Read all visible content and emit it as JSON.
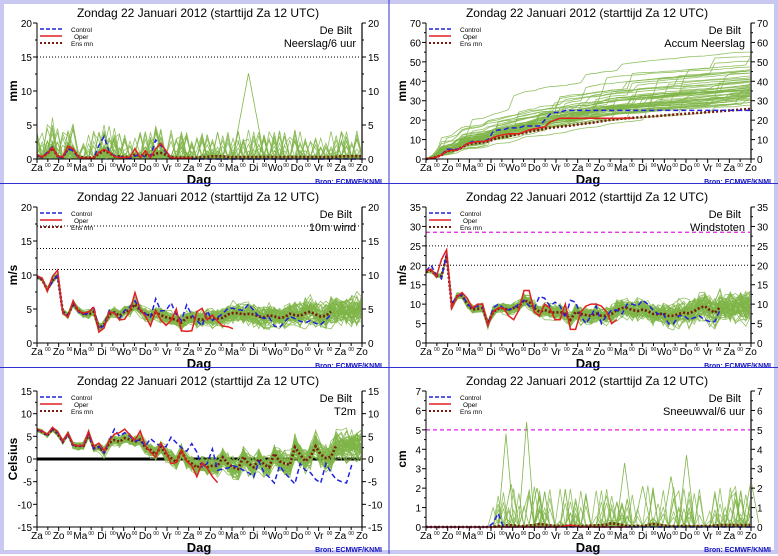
{
  "common": {
    "title": "Zondag    22 Januari   2012  (starttijd  Za 12 UTC)",
    "station": "De Bilt",
    "xlabel": "Dag",
    "source": "Bron: ECMWF/KNMI",
    "day_ticks": [
      "Za",
      "Zo",
      "Ma",
      "Di",
      "Wo",
      "Do",
      "Vr",
      "Za",
      "Zo",
      "Ma",
      "Di",
      "Wo",
      "Do",
      "Vr",
      "Za",
      "Zo"
    ],
    "hour_tick": "00",
    "legend": [
      {
        "label": "Control",
        "color": "#2020e0",
        "style": "dashed"
      },
      {
        "label": "Oper",
        "color": "#e02020",
        "style": "solid"
      },
      {
        "label": "Ens mn",
        "color": "#7a1a10",
        "style": "dotted"
      }
    ],
    "colors": {
      "ensemble": "#7fb548",
      "control": "#2020e0",
      "oper": "#e02020",
      "mean": "#7a1a10",
      "source": "#1010c0",
      "warning": "#e020e0",
      "border": "#3030d0"
    }
  },
  "chart_data": [
    {
      "id": "neerslag",
      "type": "line",
      "subtitle": "Neerslag/6 uur",
      "ylabel": "mm",
      "ylim": [
        0,
        20
      ],
      "yticks": [
        0,
        5,
        10,
        15,
        20
      ],
      "ref_lines": [
        {
          "y": 15,
          "style": "dotted",
          "color": "#000000"
        }
      ],
      "control": [
        0.5,
        0.2,
        1,
        1.8,
        0.3,
        0.2,
        1.5,
        1.2,
        0.2,
        0.1,
        0.1,
        0.1,
        2,
        3.3,
        1,
        0.5,
        0.3,
        0.2,
        0.1,
        0.4,
        0.8,
        0.3,
        0.4,
        2.8,
        2,
        1,
        0,
        0.1,
        0.1,
        0.1,
        0,
        0,
        0,
        0,
        0,
        0,
        0,
        0,
        0,
        0,
        0,
        0,
        0,
        0,
        0,
        0,
        0,
        0,
        0,
        0,
        0,
        0,
        0,
        0,
        0,
        0,
        0,
        0,
        0,
        0,
        0,
        0,
        0,
        0
      ],
      "oper": [
        0.6,
        0.3,
        0.8,
        1.7,
        0.4,
        0.3,
        1.9,
        1.5,
        0.3,
        0.1,
        0.1,
        0.1,
        1,
        1.4,
        1,
        0.4,
        0.2,
        0.2,
        0.3,
        1.5,
        0.2,
        1.2,
        0.2,
        1.5,
        2.3,
        1.2,
        0.1,
        0.1,
        0.1,
        0.1,
        0.1
      ],
      "mean": [
        0.5,
        0.3,
        0.8,
        1.6,
        0.4,
        0.3,
        1.5,
        1.3,
        0.4,
        0.2,
        0.2,
        0.2,
        0.8,
        1.2,
        0.9,
        0.4,
        0.4,
        0.3,
        0.3,
        0.6,
        0.5,
        0.6,
        0.4,
        0.8,
        0.9,
        0.6,
        0.3,
        0.2,
        0.2,
        0.2,
        0.2,
        0.2,
        0.3,
        0.3,
        0.4,
        0.4,
        0.4,
        0.3,
        0.3,
        0.3,
        0.3,
        0.3,
        0.3,
        0.3,
        0.3,
        0.3,
        0.3,
        0.3,
        0.3,
        0.3,
        0.3,
        0.3,
        0.3,
        0.3,
        0.3,
        0.3,
        0.3,
        0.3,
        0.3,
        0.4,
        0.4,
        0.4,
        0.4,
        0.4
      ],
      "ensemble_spread": {
        "members": 50,
        "max_value": 12.6,
        "peak_day_index": 10.2
      }
    },
    {
      "id": "accum",
      "type": "line",
      "subtitle": "Accum Neerslag",
      "ylabel": "mm",
      "ylim": [
        0,
        70
      ],
      "yticks": [
        0,
        10,
        20,
        30,
        40,
        50,
        60,
        70
      ],
      "ref_lines": [],
      "control": [
        0,
        0.5,
        1,
        2,
        5,
        5,
        5,
        6,
        8,
        9,
        9,
        9,
        10,
        14,
        15,
        15,
        16,
        16,
        16,
        17,
        17,
        17,
        17,
        20,
        23,
        24,
        24,
        25,
        25,
        25,
        25,
        25,
        25,
        25,
        25,
        25,
        25,
        25,
        25,
        25,
        25,
        25,
        25,
        25,
        25,
        25,
        25,
        25,
        25,
        25,
        25,
        25,
        25,
        25,
        25,
        25,
        25,
        25,
        25,
        25,
        25,
        25,
        25,
        25
      ],
      "oper": [
        0,
        0.5,
        1,
        2,
        4,
        4.5,
        4.5,
        6,
        8,
        8.5,
        9,
        9,
        9.5,
        11,
        12,
        12.5,
        13,
        13,
        13,
        14,
        15,
        15.5,
        16,
        16.5,
        19,
        20,
        21,
        21,
        21,
        21,
        21,
        21,
        21,
        21,
        21,
        21,
        21,
        21,
        21,
        21,
        21
      ],
      "mean": [
        0,
        0.4,
        1,
        2,
        4,
        4.4,
        4.8,
        6,
        7.5,
        8,
        8.3,
        8.6,
        9,
        10,
        10.8,
        11.3,
        11.8,
        12.3,
        12.8,
        13.4,
        14,
        14.5,
        15,
        15.6,
        16,
        16.3,
        16.6,
        16.9,
        17.2,
        17.6,
        18,
        18.3,
        18.6,
        19,
        19.4,
        19.8,
        20.2,
        20.5,
        20.8,
        21,
        21.2,
        21.4,
        21.6,
        21.8,
        22,
        22.2,
        22.4,
        22.6,
        22.8,
        23,
        23.2,
        23.4,
        23.6,
        23.8,
        24,
        24.2,
        24.4,
        24.6,
        24.8,
        25,
        25.2,
        25.4,
        25.6,
        25.8
      ],
      "ensemble_spread": {
        "members": 50,
        "final_min": 10,
        "final_max": 55
      }
    },
    {
      "id": "wind",
      "type": "line",
      "subtitle": "10m wind",
      "ylabel": "m/s",
      "ylim": [
        0,
        20
      ],
      "yticks": [
        0,
        5,
        10,
        15,
        20
      ],
      "ref_lines": [
        {
          "y": 10.8,
          "style": "dotted",
          "color": "#000000"
        },
        {
          "y": 13.9,
          "style": "dotted",
          "color": "#000000"
        },
        {
          "y": 17.2,
          "style": "dotted",
          "color": "#000000"
        }
      ],
      "control": [
        9.8,
        9.4,
        7.7,
        9,
        10,
        4.5,
        4,
        6,
        4.6,
        4.2,
        4.4,
        5.4,
        2,
        2.6,
        4.8,
        4.4,
        3.6,
        4.8,
        5.3,
        6.2,
        4.8,
        4.3,
        3.8,
        6.5,
        4.7,
        4.8,
        5.9,
        4.2,
        3.3,
        5.6,
        4.1,
        3.3,
        2.5,
        4.7,
        3.3,
        3.8,
        4.3,
        5.1,
        5.1,
        4.9,
        4.8,
        5.7,
        4.8,
        3.9,
        3.6,
        3.8,
        2.5,
        2.3,
        3.1,
        3.9,
        3.6,
        3.2,
        3,
        3.3,
        2.9,
        2.7,
        3.4,
        4.2
      ],
      "oper": [
        9.9,
        9.5,
        7.6,
        9.8,
        10.7,
        4.4,
        3.8,
        6.2,
        4.7,
        4.4,
        4.6,
        5.2,
        1.6,
        2.2,
        4.6,
        4.4,
        3.4,
        3.5,
        4.7,
        7.4,
        4.9,
        4,
        2.5,
        4.8,
        3.4,
        2.6,
        3.3,
        5,
        1.8,
        1.7,
        1.8,
        4.6,
        5.1,
        3.4,
        4.1,
        3.2,
        2.5,
        2.4,
        2.1
      ],
      "mean": [
        9.7,
        9.3,
        7.8,
        9.2,
        9.9,
        4.6,
        4,
        5.8,
        4.8,
        4.3,
        4.2,
        4.6,
        2.2,
        2.7,
        4.2,
        4.5,
        4,
        4.6,
        4.8,
        5.7,
        4.8,
        4.3,
        4,
        4.5,
        4.1,
        3.8,
        3.6,
        3.4,
        3,
        3.7,
        3.8,
        3.5,
        3.4,
        3.8,
        3.6,
        3.6,
        3.7,
        4.2,
        4.4,
        4.4,
        4.2,
        4.3,
        4.2,
        3.9,
        3.8,
        4.1,
        3.9,
        3.7,
        3.8,
        4.3,
        4.1,
        4,
        4.4,
        4.6,
        4.2,
        3.9,
        4,
        4.6
      ],
      "ensemble_spread": {
        "members": 50,
        "max_value": 12.5
      }
    },
    {
      "id": "windstoten",
      "type": "line",
      "subtitle": "Windstoten",
      "ylabel": "m/s",
      "ylim": [
        0,
        35
      ],
      "yticks": [
        0,
        5,
        10,
        15,
        20,
        25,
        30,
        35
      ],
      "ref_lines": [
        {
          "y": 20,
          "style": "dotted",
          "color": "#000000"
        },
        {
          "y": 25,
          "style": "dotted",
          "color": "#000000"
        },
        {
          "y": 28.5,
          "style": "dashed",
          "color": "#e020e0"
        }
      ],
      "control": [
        18.5,
        20,
        17.5,
        16.5,
        23,
        10,
        12,
        12.5,
        10,
        9,
        9.5,
        9.5,
        4.5,
        9,
        10,
        9,
        8.5,
        9,
        10,
        11,
        9.5,
        9,
        12,
        11.5,
        9.5,
        10.5,
        9.5,
        6.5,
        11,
        10.5,
        7,
        5,
        7,
        9.5,
        5,
        7,
        8.5,
        8.5,
        7.5,
        10,
        10,
        9.5,
        11,
        10,
        8.5,
        7.5,
        7.5,
        5,
        5,
        7,
        7,
        6,
        6.5,
        7,
        6,
        5.5,
        5.5,
        8.5
      ],
      "oper": [
        18.5,
        19,
        17,
        21.5,
        24,
        9,
        12,
        13,
        11.5,
        9,
        10,
        10,
        4.5,
        8,
        9,
        9,
        7,
        6,
        8.5,
        13.5,
        13.5,
        8,
        7,
        10,
        9,
        6,
        6,
        10,
        3.5,
        3.5,
        8,
        9.5,
        10,
        10,
        9.5,
        8,
        5,
        6
      ],
      "mean": [
        18.3,
        18.6,
        17.4,
        17.2,
        22.5,
        9.5,
        12,
        12.2,
        10,
        8.6,
        8.8,
        9,
        5,
        8,
        8.8,
        9,
        8.5,
        9,
        9.4,
        11,
        10.5,
        9,
        8,
        8.5,
        8,
        7.8,
        8,
        7.5,
        6,
        8,
        7.5,
        7.2,
        7,
        7.6,
        7,
        7,
        7.5,
        8.5,
        9,
        9,
        8.5,
        8.2,
        8.6,
        8.2,
        7.5,
        7.4,
        7.6,
        7,
        7,
        7.5,
        7.8,
        7.6,
        8.2,
        9,
        9.5,
        8.5,
        7.8,
        9.2
      ],
      "ensemble_spread": {
        "members": 50,
        "max_value": 25.5
      }
    },
    {
      "id": "t2m",
      "type": "line",
      "subtitle": "T2m",
      "ylabel": "Celsius",
      "ylim": [
        -15,
        15
      ],
      "yticks": [
        -15,
        -10,
        -5,
        0,
        5,
        10,
        15
      ],
      "ref_lines": [
        {
          "y": 0,
          "style": "solid-thick",
          "color": "#000000"
        }
      ],
      "control": [
        6.5,
        6,
        5.3,
        6.7,
        5.8,
        3.8,
        5.6,
        3,
        2.9,
        2.8,
        5.6,
        2.2,
        2.8,
        1.3,
        4,
        6.6,
        5,
        5.8,
        5,
        4,
        4.2,
        2.8,
        4.5,
        3.5,
        2.8,
        2.7,
        4.8,
        3.6,
        2.5,
        1.7,
        3.4,
        1.5,
        -1.8,
        -1,
        2.2,
        -2.5,
        -2.2,
        -2,
        -1.5,
        -1.8,
        -2.5,
        -3,
        -4,
        -0.5,
        -3,
        -4,
        -5.3,
        -1.5,
        -3,
        -4.3,
        -5.5,
        -1,
        -2.5,
        -3,
        -4.5,
        -5.3,
        -1,
        -3,
        -4.5,
        -5,
        -5.3,
        -1.3
      ],
      "oper": [
        6.6,
        6.2,
        5.4,
        7,
        6,
        4,
        5.8,
        3.2,
        2.9,
        3,
        6.1,
        2.8,
        3.5,
        1.8,
        4,
        5.5,
        5.8,
        6.6,
        5.3,
        4.2,
        6.2,
        3,
        1.5,
        0.4,
        3.5,
        1.6,
        -1,
        -0.8,
        2,
        -0.5,
        -1.5,
        -3.9,
        -0.8,
        -2,
        -3.9,
        -5.2
      ],
      "mean": [
        6.4,
        6,
        5.2,
        6.6,
        5.6,
        3.8,
        5.5,
        3,
        2.9,
        2.9,
        5.5,
        2.4,
        2.6,
        1.5,
        3.5,
        4.2,
        3.8,
        4.6,
        4.3,
        3.8,
        4.3,
        2.5,
        2,
        1,
        2.7,
        1,
        0.2,
        -0.7,
        1.8,
        -0.4,
        -1,
        -1.9,
        -1,
        -1.8,
        -1.5,
        -1.5,
        0.4,
        -1,
        -1.8,
        -2.2,
        0.5,
        -1,
        -1.8,
        0,
        -1.2,
        -1.8,
        1.2,
        -0.5,
        -1,
        -1.3,
        2.6,
        1,
        -0.5,
        0.5,
        2.8,
        1,
        0.2,
        0.5,
        3
      ],
      "ensemble_spread": {
        "members": 50,
        "min_value": -11.5,
        "max_value": 10
      }
    },
    {
      "id": "sneeuw",
      "type": "line",
      "subtitle": "Sneeuwval/6 uur",
      "ylabel": "cm",
      "ylim": [
        0,
        7
      ],
      "yticks": [
        0,
        1,
        2,
        3,
        4,
        5,
        6,
        7
      ],
      "ref_lines": [
        {
          "y": 5,
          "style": "dashed",
          "color": "#e020e0"
        }
      ],
      "control": [
        0,
        0,
        0,
        0,
        0,
        0,
        0,
        0,
        0,
        0,
        0,
        0,
        0,
        0.2,
        0.7,
        0,
        0,
        0,
        0,
        0,
        0,
        0,
        0,
        0,
        0,
        0,
        0,
        0,
        0,
        0,
        0,
        0,
        0,
        0,
        0,
        0,
        0,
        0,
        0,
        0,
        0,
        0,
        0,
        0,
        0,
        0,
        0,
        0,
        0,
        0,
        0,
        0,
        0,
        0,
        0,
        0,
        0,
        0,
        0,
        0,
        0,
        0,
        0,
        0
      ],
      "oper": [
        0,
        0,
        0,
        0,
        0,
        0,
        0,
        0,
        0,
        0,
        0,
        0,
        0,
        0,
        0,
        0,
        0,
        0,
        0,
        0,
        0,
        0,
        0,
        0,
        0,
        0,
        0,
        0.05,
        0.1,
        0.05,
        0,
        0,
        0,
        0,
        0,
        0,
        0,
        0,
        0,
        0
      ],
      "mean": [
        0,
        0,
        0,
        0,
        0,
        0,
        0,
        0,
        0,
        0,
        0,
        0,
        0,
        0,
        0.05,
        0.05,
        0.1,
        0.08,
        0.05,
        0.05,
        0.08,
        0.1,
        0.15,
        0.12,
        0.08,
        0.06,
        0.06,
        0.06,
        0.08,
        0.06,
        0.05,
        0.06,
        0.08,
        0.08,
        0.1,
        0.12,
        0.2,
        0.15,
        0.1,
        0.05,
        0.05,
        0.05,
        0.05,
        0.1,
        0.15,
        0.12,
        0.08,
        0.05,
        0.05,
        0.05,
        0.05,
        0.05,
        0.05,
        0.05,
        0.05,
        0.05,
        0.08,
        0.1,
        0.1,
        0.1,
        0.1,
        0.1,
        0.1,
        0.1
      ],
      "ensemble_spread": {
        "members": 50,
        "peaks": [
          [
            15.5,
            4.8
          ],
          [
            19.5,
            5.4
          ],
          [
            16.5,
            2.2
          ],
          [
            21.5,
            2.0
          ],
          [
            38.5,
            3.3
          ],
          [
            50.5,
            3.7
          ],
          [
            47.5,
            2.6
          ],
          [
            42,
            2.1
          ],
          [
            63,
            2.4
          ]
        ]
      }
    }
  ]
}
